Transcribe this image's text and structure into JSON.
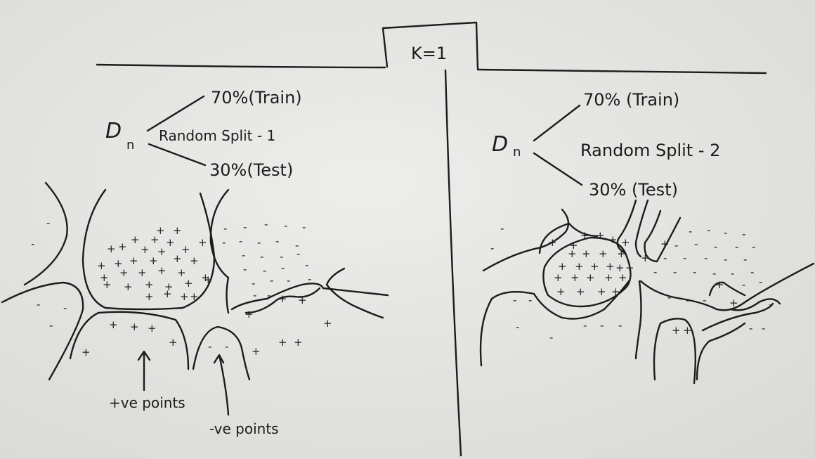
{
  "header": {
    "label": "K=1"
  },
  "left_panel": {
    "dataset": "D",
    "dataset_subscript": "n",
    "train": "70%(Train)",
    "split": "Random Split - 1",
    "test": "30%(Test)",
    "pos_points_label": "+ve points",
    "neg_points_label": "-ve points"
  },
  "right_panel": {
    "dataset": "D",
    "dataset_subscript": "n",
    "train": "70% (Train)",
    "split": "Random Split - 2",
    "test": "30% (Test)"
  },
  "symbols": {
    "plus": "+",
    "minus": "-"
  }
}
